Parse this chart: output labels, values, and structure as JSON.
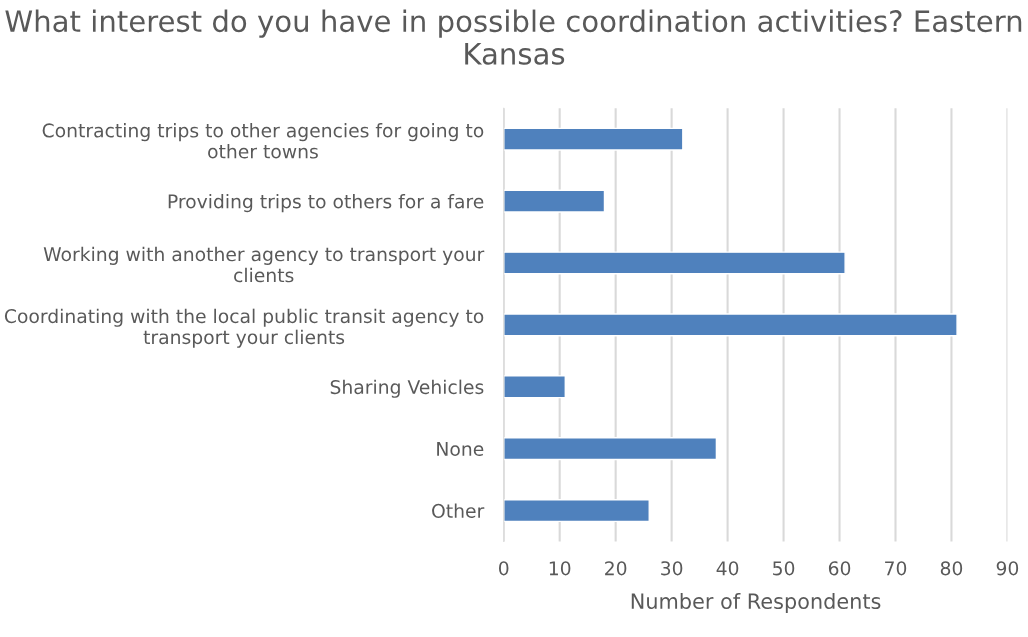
{
  "chart_data": {
    "type": "bar",
    "orientation": "horizontal",
    "title": "What interest do you have in possible coordination activities? Eastern Kansas",
    "xlabel": "Number of Respondents",
    "categories": [
      "Contracting trips to other agencies for going to other towns",
      "Providing trips to others for a fare",
      "Working with another agency to transport your clients",
      "Coordinating with the local public transit agency to transport your clients",
      "Sharing Vehicles",
      "None",
      "Other"
    ],
    "values": [
      32,
      18,
      61,
      81,
      11,
      38,
      26
    ],
    "color": "#4f81bd",
    "xlim": [
      0,
      90
    ],
    "xticks": [
      0,
      10,
      20,
      30,
      40,
      50,
      60,
      70,
      80,
      90
    ],
    "grid": "x",
    "legend": false
  }
}
